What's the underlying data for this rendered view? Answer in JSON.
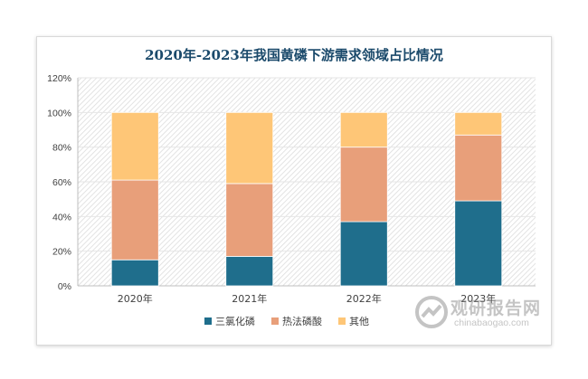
{
  "chart_data": {
    "type": "bar",
    "stacked": true,
    "title": "2020年-2023年我国黄磷下游需求领域占比情况",
    "categories": [
      "2020年",
      "2021年",
      "2022年",
      "2023年"
    ],
    "series": [
      {
        "name": "三氯化磷",
        "color": "#1f6e8c",
        "values": [
          15,
          17,
          37,
          49
        ]
      },
      {
        "name": "热法磷酸",
        "color": "#e89f7a",
        "values": [
          46,
          42,
          43,
          38
        ]
      },
      {
        "name": "其他",
        "color": "#fec677",
        "values": [
          39,
          41,
          20,
          13
        ]
      }
    ],
    "y_ticks": [
      "0%",
      "20%",
      "40%",
      "60%",
      "80%",
      "100%",
      "120%"
    ],
    "ylim": [
      0,
      120
    ],
    "grid": true,
    "legend_position": "bottom"
  },
  "watermark": {
    "name": "观研报告网",
    "url": "chinabaogao.com"
  }
}
